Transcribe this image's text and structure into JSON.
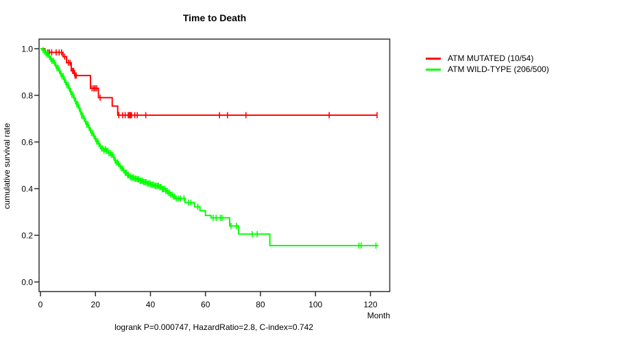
{
  "chart_data": {
    "type": "line",
    "chart_kind": "kaplan-meier-step",
    "title": "Time to Death",
    "xlabel": "Month",
    "ylabel": "cumulative survival rate",
    "annotation": "logrank P=0.000747, HazardRatio=2.8, C-index=0.742",
    "stats": {
      "logrank_p": "0.000747",
      "hazard_ratio": "2.8",
      "c_index": "0.742"
    },
    "xlim": [
      0,
      127
    ],
    "ylim": [
      0.0,
      1.0
    ],
    "x_ticks": [
      0,
      20,
      40,
      60,
      80,
      100,
      120
    ],
    "y_ticks": [
      0.0,
      0.2,
      0.4,
      0.6,
      0.8,
      1.0
    ],
    "grid": false,
    "legend_position": "right-outside",
    "series": [
      {
        "name": "ATM MUTATED",
        "label": "ATM MUTATED (10/54)",
        "color": "#ff0000",
        "events": 10,
        "n": 54,
        "end_time": 122.4,
        "points": [
          [
            0,
            1.0
          ],
          [
            1.6,
            0.984
          ],
          [
            8.2,
            0.966
          ],
          [
            9.5,
            0.94
          ],
          [
            11.2,
            0.905
          ],
          [
            12.4,
            0.885
          ],
          [
            18.2,
            0.83
          ],
          [
            21.1,
            0.79
          ],
          [
            26.1,
            0.754
          ],
          [
            28.1,
            0.715
          ]
        ],
        "censor_times": [
          2.7,
          3.3,
          4.1,
          5.7,
          6.8,
          7.7,
          8.8,
          10.2,
          10.8,
          11.7,
          12.1,
          12.6,
          13.0,
          18.8,
          19.4,
          19.9,
          20.5,
          21.7,
          28.5,
          29.9,
          30.8,
          31.9,
          32.3,
          32.7,
          33.1,
          34.3,
          35.2,
          38.3,
          65.1,
          68.0,
          74.7,
          105.0,
          122.4
        ]
      },
      {
        "name": "ATM WILD-TYPE",
        "label": "ATM WILD-TYPE (206/500)",
        "color": "#00ff00",
        "events": 206,
        "n": 500,
        "end_time": 122.9,
        "points": [
          [
            0,
            1.0
          ],
          [
            0.6,
            0.994
          ],
          [
            1.2,
            0.988
          ],
          [
            1.8,
            0.982
          ],
          [
            2.4,
            0.975
          ],
          [
            3.0,
            0.965
          ],
          [
            3.6,
            0.956
          ],
          [
            4.2,
            0.948
          ],
          [
            4.8,
            0.94
          ],
          [
            5.4,
            0.928
          ],
          [
            6.0,
            0.917
          ],
          [
            6.6,
            0.905
          ],
          [
            7.2,
            0.893
          ],
          [
            7.8,
            0.882
          ],
          [
            8.4,
            0.868
          ],
          [
            9.0,
            0.856
          ],
          [
            9.6,
            0.844
          ],
          [
            10.2,
            0.83
          ],
          [
            10.8,
            0.816
          ],
          [
            11.4,
            0.803
          ],
          [
            12.0,
            0.789
          ],
          [
            12.6,
            0.774
          ],
          [
            13.2,
            0.76
          ],
          [
            13.8,
            0.745
          ],
          [
            14.4,
            0.729
          ],
          [
            15.0,
            0.712
          ],
          [
            15.6,
            0.7
          ],
          [
            16.2,
            0.688
          ],
          [
            16.8,
            0.674
          ],
          [
            17.4,
            0.662
          ],
          [
            18.0,
            0.65
          ],
          [
            18.6,
            0.638
          ],
          [
            19.2,
            0.626
          ],
          [
            19.8,
            0.614
          ],
          [
            20.4,
            0.602
          ],
          [
            21.0,
            0.592
          ],
          [
            21.6,
            0.582
          ],
          [
            22.2,
            0.572
          ],
          [
            22.8,
            0.562
          ],
          [
            23.4,
            0.57
          ],
          [
            24.0,
            0.562
          ],
          [
            24.8,
            0.552
          ],
          [
            25.6,
            0.545
          ],
          [
            26.4,
            0.535
          ],
          [
            27.0,
            0.52
          ],
          [
            27.6,
            0.512
          ],
          [
            28.2,
            0.505
          ],
          [
            28.8,
            0.497
          ],
          [
            29.4,
            0.487
          ],
          [
            30.0,
            0.478
          ],
          [
            30.7,
            0.468
          ],
          [
            31.4,
            0.458
          ],
          [
            32.2,
            0.452
          ],
          [
            33.0,
            0.447
          ],
          [
            34.0,
            0.443
          ],
          [
            35.0,
            0.44
          ],
          [
            36.2,
            0.434
          ],
          [
            37.4,
            0.428
          ],
          [
            38.6,
            0.422
          ],
          [
            40.0,
            0.417
          ],
          [
            41.5,
            0.412
          ],
          [
            43.0,
            0.407
          ],
          [
            44.3,
            0.398
          ],
          [
            45.6,
            0.39
          ],
          [
            46.4,
            0.382
          ],
          [
            47.2,
            0.374
          ],
          [
            48.0,
            0.366
          ],
          [
            48.9,
            0.358
          ],
          [
            52.6,
            0.34
          ],
          [
            56.0,
            0.322
          ],
          [
            58.0,
            0.305
          ],
          [
            60.0,
            0.285
          ],
          [
            62.0,
            0.275
          ],
          [
            68.8,
            0.24
          ],
          [
            72.1,
            0.205
          ],
          [
            83.4,
            0.156
          ]
        ],
        "censor_times": [
          1.0,
          1.5,
          2.0,
          2.4,
          2.9,
          3.3,
          3.8,
          4.2,
          4.7,
          5.1,
          5.6,
          6.0,
          6.5,
          6.9,
          7.4,
          7.8,
          8.3,
          8.7,
          9.2,
          9.6,
          10.1,
          10.5,
          11.0,
          11.4,
          11.9,
          12.3,
          12.8,
          13.2,
          13.7,
          14.1,
          14.6,
          15.0,
          15.5,
          15.9,
          16.4,
          16.8,
          17.3,
          17.7,
          18.2,
          18.6,
          19.1,
          19.5,
          20.0,
          20.4,
          20.9,
          21.3,
          21.8,
          22.2,
          22.7,
          23.1,
          23.6,
          24.0,
          24.5,
          24.9,
          25.4,
          25.8,
          26.3,
          26.7,
          27.2,
          27.6,
          28.1,
          28.5,
          29.0,
          29.4,
          29.9,
          30.3,
          30.8,
          31.2,
          31.7,
          32.1,
          32.6,
          33.0,
          33.5,
          33.9,
          34.4,
          34.8,
          35.3,
          35.7,
          36.2,
          36.6,
          37.1,
          37.5,
          38.0,
          38.4,
          38.9,
          39.3,
          39.8,
          40.2,
          40.7,
          41.1,
          41.6,
          42.0,
          42.5,
          42.9,
          43.4,
          43.8,
          44.3,
          44.7,
          45.2,
          45.6,
          46.1,
          46.5,
          47.0,
          47.4,
          47.9,
          48.3,
          48.8,
          49.4,
          50.1,
          50.9,
          52.2,
          53.9,
          54.7,
          57.2,
          62.8,
          63.9,
          65.4,
          66.0,
          69.3,
          71.3,
          77.0,
          78.8,
          115.8,
          116.6,
          122.0
        ]
      }
    ]
  }
}
